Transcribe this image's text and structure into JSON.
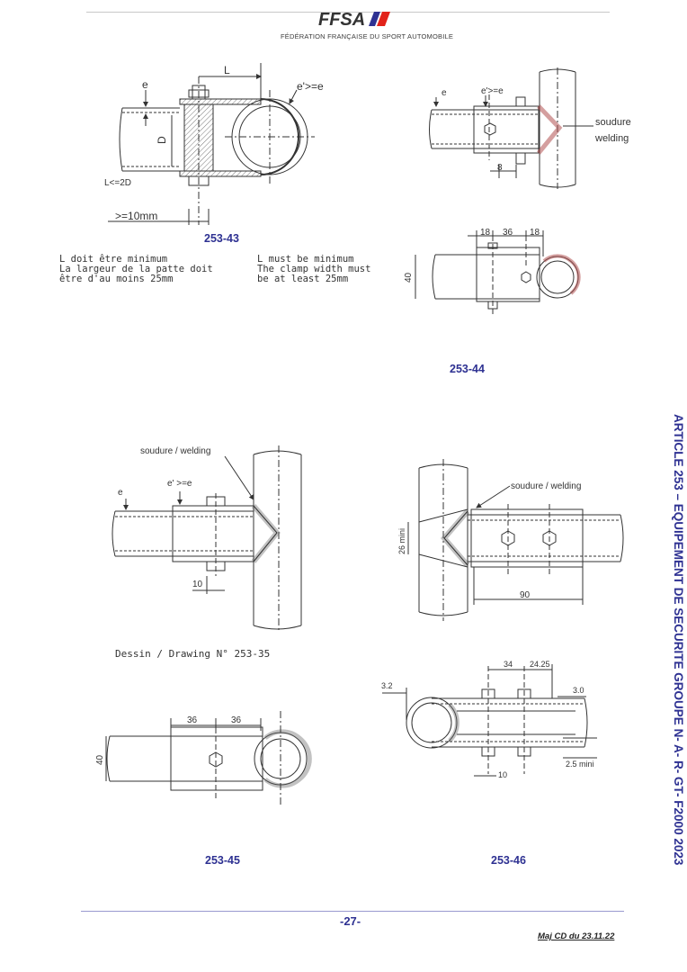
{
  "header": {
    "logo": "FFSA",
    "federation": "FÉDÉRATION FRANÇAISE DU SPORT AUTOMOBILE"
  },
  "fig43": {
    "caption": "253-43",
    "dim_L": "L",
    "dim_e": "e",
    "dim_ee": "e'>=e",
    "dim_D": "D",
    "dim_L2D": "L<=2D",
    "dim_10mm": ">=10mm",
    "note_fr": "L doit être minimum\nLa largeur de la patte doit\nêtre d'au moins 25mm",
    "note_en": "L must be minimum\nThe clamp width must\nbe at least 25mm"
  },
  "fig44": {
    "caption": "253-44",
    "dim_e": "e",
    "dim_ee": "e'>=e",
    "soudure": "soudure",
    "welding": "welding",
    "dim_8": "8",
    "dim_18a": "18",
    "dim_36": "36",
    "dim_18b": "18",
    "dim_40": "40"
  },
  "fig45": {
    "caption": "253-45",
    "weld_label": "soudure / welding",
    "dim_ee": "e' >=e",
    "dim_e": "e",
    "dim_10": "10",
    "drawing_ref": "Dessin / Drawing N° 253-35",
    "dim_36a": "36",
    "dim_36b": "36",
    "dim_40": "40"
  },
  "fig46": {
    "caption": "253-46",
    "weld_label": "soudure / welding",
    "dim_26": "26 mini",
    "dim_90": "90",
    "dim_34": "34",
    "dim_2425": "24.25",
    "dim_32": "3.2",
    "dim_30": "3.0",
    "dim_25": "2.5 mini",
    "dim_10": "10"
  },
  "side_title": "ARTICLE 253 – EQUIPEMENT DE SECURITE GROUPE N- A- R- GT- F2000 2023",
  "footer": {
    "page": "-27-",
    "update": "Maj CD du 23.11.22"
  },
  "colors": {
    "accent": "#2e3192",
    "logo_red": "#e2231a",
    "weld": "#c87c7c"
  }
}
